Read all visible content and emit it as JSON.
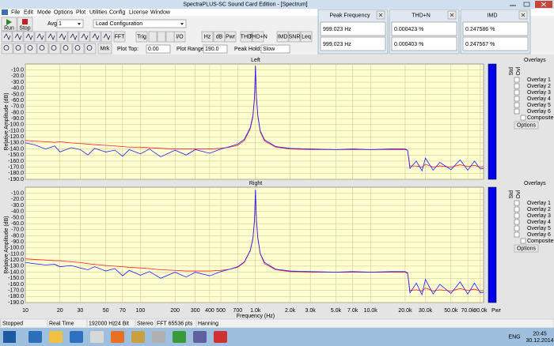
{
  "window": {
    "title": "SpectraPLUS-SC Sound Card Edition - [Spectrum]"
  },
  "menu": [
    "File",
    "Edit",
    "Mode",
    "Options",
    "Plot",
    "Utilities",
    "Config",
    "License",
    "Window"
  ],
  "toolbar": {
    "run": "Run",
    "stop": "Stop",
    "avg_label": "Avg",
    "avg_value": "1",
    "config": "Load Configuration",
    "buttons": [
      "FFT",
      "Trig",
      "I/O",
      "Hz",
      "dB",
      "Pwr",
      "THD",
      "THD+N",
      "IMD",
      "SNR",
      "Leq"
    ],
    "marker": "Mrk",
    "plot_top_label": "Plot Top:",
    "plot_top": "0.00",
    "plot_range_label": "Plot Range:",
    "plot_range": "190.0",
    "peak_hold_label": "Peak Hold:",
    "peak_hold": "Slow"
  },
  "meters": [
    {
      "title": "Peak Frequency",
      "values": [
        "999.023 Hz",
        "999.023 Hz"
      ]
    },
    {
      "title": "THD+N",
      "values": [
        "0.000423 %",
        "0.000403 %"
      ]
    },
    {
      "title": "IMD",
      "values": [
        "0.247586 %",
        "0.247567 %"
      ]
    }
  ],
  "spectrum": {
    "y_label": "Relative Amplitude (dB)",
    "x_label": "Frequency (Hz)",
    "colorbar_label": "Pwr",
    "log_x": true,
    "grid": true,
    "xlim": [
      10,
      96000
    ],
    "ylim": [
      -190,
      0
    ],
    "xticks": [
      10,
      20,
      30,
      50,
      70,
      100,
      200,
      300,
      400,
      500,
      700,
      {
        "value": 1000,
        "label": "1.0k"
      },
      {
        "value": 2000,
        "label": "2.0k"
      },
      {
        "value": 3000,
        "label": "3.0k"
      },
      {
        "value": 5000,
        "label": "5.0k"
      },
      {
        "value": 7000,
        "label": "7.0k"
      },
      {
        "value": 10000,
        "label": "10.0k"
      },
      {
        "value": 20000,
        "label": "20.0k"
      },
      {
        "value": 30000,
        "label": "30.0k"
      },
      {
        "value": 50000,
        "label": "50.0k"
      },
      {
        "value": 70000,
        "label": "70.0k"
      },
      {
        "value": 90000,
        "label": "90.0k"
      }
    ],
    "yticks": [
      {
        "value": -10,
        "label": "-10.0"
      },
      {
        "value": -20,
        "label": "-20.0"
      },
      {
        "value": -30,
        "label": "-30.0"
      },
      {
        "value": -40,
        "label": "-40.0"
      },
      {
        "value": -50,
        "label": "-50.0"
      },
      {
        "value": -60,
        "label": "-60.0"
      },
      {
        "value": -70,
        "label": "-70.0"
      },
      {
        "value": -80,
        "label": "-80.0"
      },
      {
        "value": -90,
        "label": "-90.0"
      },
      {
        "value": -100,
        "label": "-100.0"
      },
      {
        "value": -110,
        "label": "-110.0"
      },
      {
        "value": -120,
        "label": "-120.0"
      },
      {
        "value": -130,
        "label": "-130.0"
      },
      {
        "value": -140,
        "label": "-140.0"
      },
      {
        "value": -150,
        "label": "-150.0"
      },
      {
        "value": -160,
        "label": "-160.0"
      },
      {
        "value": -170,
        "label": "-170.0"
      },
      {
        "value": -180,
        "label": "-180.0"
      },
      {
        "value": -190,
        "label": "-190.0"
      }
    ],
    "x": [
      10,
      12,
      15,
      18,
      20,
      25,
      30,
      35,
      40,
      50,
      60,
      70,
      80,
      100,
      120,
      150,
      200,
      250,
      300,
      400,
      500,
      600,
      700,
      800,
      900,
      950,
      980,
      1000,
      1020,
      1050,
      1100,
      1200,
      1500,
      2000,
      3000,
      5000,
      7000,
      10000,
      15000,
      20000,
      21000,
      22000,
      25000,
      28000,
      30000,
      35000,
      40000,
      50000,
      60000,
      70000,
      80000,
      90000,
      96000
    ],
    "plots": [
      {
        "title": "Left",
        "series": [
          {
            "color": "#ff2020",
            "values": [
              -126,
              -127,
              -128,
              -129,
              -128,
              -130,
              -131,
              -132,
              -133,
              -134,
              -135,
              -136,
              -137,
              -137,
              -138,
              -139,
              -140,
              -140,
              -140,
              -140,
              -139,
              -137,
              -134,
              -126,
              -107,
              -88,
              -58,
              -3,
              -58,
              -88,
              -112,
              -127,
              -137,
              -140,
              -141,
              -141,
              -141,
              -141,
              -141,
              -141,
              -142,
              -168,
              -168,
              -170,
              -165,
              -170,
              -168,
              -170,
              -166,
              -169,
              -167,
              -170,
              -169
            ]
          },
          {
            "color": "#2020ff",
            "values": [
              -130,
              -133,
              -140,
              -135,
              -145,
              -138,
              -141,
              -150,
              -139,
              -145,
              -142,
              -152,
              -141,
              -148,
              -140,
              -153,
              -142,
              -150,
              -141,
              -147,
              -140,
              -136,
              -132,
              -124,
              -105,
              -85,
              -55,
              -3,
              -55,
              -85,
              -110,
              -125,
              -136,
              -139,
              -140,
              -141,
              -140,
              -141,
              -140,
              -140,
              -142,
              -172,
              -160,
              -176,
              -155,
              -175,
              -162,
              -174,
              -158,
              -175,
              -160,
              -173,
              -172
            ]
          }
        ]
      },
      {
        "title": "Right",
        "series": [
          {
            "color": "#ff2020",
            "values": [
              -118,
              -119,
              -120,
              -121,
              -121,
              -123,
              -124,
              -126,
              -127,
              -129,
              -130,
              -131,
              -132,
              -133,
              -134,
              -136,
              -137,
              -138,
              -138,
              -138,
              -137,
              -135,
              -132,
              -124,
              -105,
              -86,
              -57,
              -4,
              -57,
              -86,
              -110,
              -126,
              -136,
              -139,
              -140,
              -140,
              -140,
              -140,
              -140,
              -140,
              -142,
              -170,
              -169,
              -171,
              -166,
              -171,
              -169,
              -171,
              -167,
              -170,
              -168,
              -171,
              -170
            ]
          },
          {
            "color": "#2020ff",
            "values": [
              -124,
              -126,
              -128,
              -127,
              -131,
              -129,
              -133,
              -136,
              -131,
              -138,
              -134,
              -146,
              -137,
              -145,
              -139,
              -150,
              -140,
              -148,
              -140,
              -146,
              -139,
              -135,
              -131,
              -123,
              -104,
              -84,
              -54,
              -4,
              -54,
              -84,
              -109,
              -124,
              -135,
              -138,
              -139,
              -140,
              -139,
              -140,
              -139,
              -139,
              -141,
              -174,
              -158,
              -177,
              -152,
              -176,
              -160,
              -175,
              -156,
              -176,
              -158,
              -174,
              -173
            ]
          }
        ]
      }
    ]
  },
  "overlays": {
    "std": "Std",
    "ovl": "Ovl",
    "title": "Overlays",
    "composite": "Composite",
    "options": "Options",
    "items": [
      {
        "name": "Overlay 1",
        "color": "#008000"
      },
      {
        "name": "Overlay 2",
        "color": "#00a0a0"
      },
      {
        "name": "Overlay 3",
        "color": "#c000c0"
      },
      {
        "name": "Overlay 4",
        "color": "#ff00ff"
      },
      {
        "name": "Overlay 5",
        "color": "#804000"
      },
      {
        "name": "Overlay 6",
        "color": "#ff8040"
      }
    ]
  },
  "status": [
    "Stopped",
    "Real Time",
    "192000 Hz",
    "24 Bit",
    "Stereo",
    "FFT 65536 pts",
    "Hanning"
  ],
  "taskbar": {
    "lang": "ENG",
    "time": "20:45",
    "date": "30.12.2014"
  }
}
